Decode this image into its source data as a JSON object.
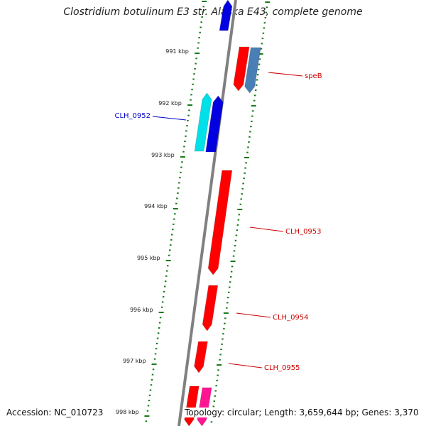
{
  "title": "Clostridium botulinum E3 str. Alaska E43, complete genome",
  "footer": {
    "accession": "Accession: NC_010723",
    "topology": "Topology: circular; Length: 3,659,644 bp; Genes: 3,370"
  },
  "colors": {
    "backbone": "#808080",
    "ticks": "#1a7a1a",
    "forward_label": "#0000c8",
    "reverse_label": "#cc0000"
  },
  "scale": {
    "unit": "kbp",
    "labels": [
      "991 kbp",
      "992 kbp",
      "993 kbp",
      "994 kbp",
      "995 kbp",
      "996 kbp",
      "997 kbp",
      "998 kbp"
    ]
  },
  "genes": [
    {
      "name": "",
      "strand": "forward",
      "color": "#0000e0"
    },
    {
      "name": "speB",
      "strand": "reverse",
      "color": "#ff0000"
    },
    {
      "name": "",
      "strand": "reverse",
      "color": "#4a7fb5"
    },
    {
      "name": "",
      "strand": "forward",
      "color": "#00e0e8"
    },
    {
      "name": "CLH_0952",
      "strand": "forward",
      "color": "#0000e0"
    },
    {
      "name": "CLH_0953",
      "strand": "reverse",
      "color": "#ff0000"
    },
    {
      "name": "CLH_0954",
      "strand": "reverse",
      "color": "#ff0000"
    },
    {
      "name": "CLH_0955",
      "strand": "reverse",
      "color": "#ff0000"
    },
    {
      "name": "",
      "strand": "reverse",
      "color": "#ff0000"
    },
    {
      "name": "",
      "strand": "reverse",
      "color": "#ff1493"
    }
  ]
}
